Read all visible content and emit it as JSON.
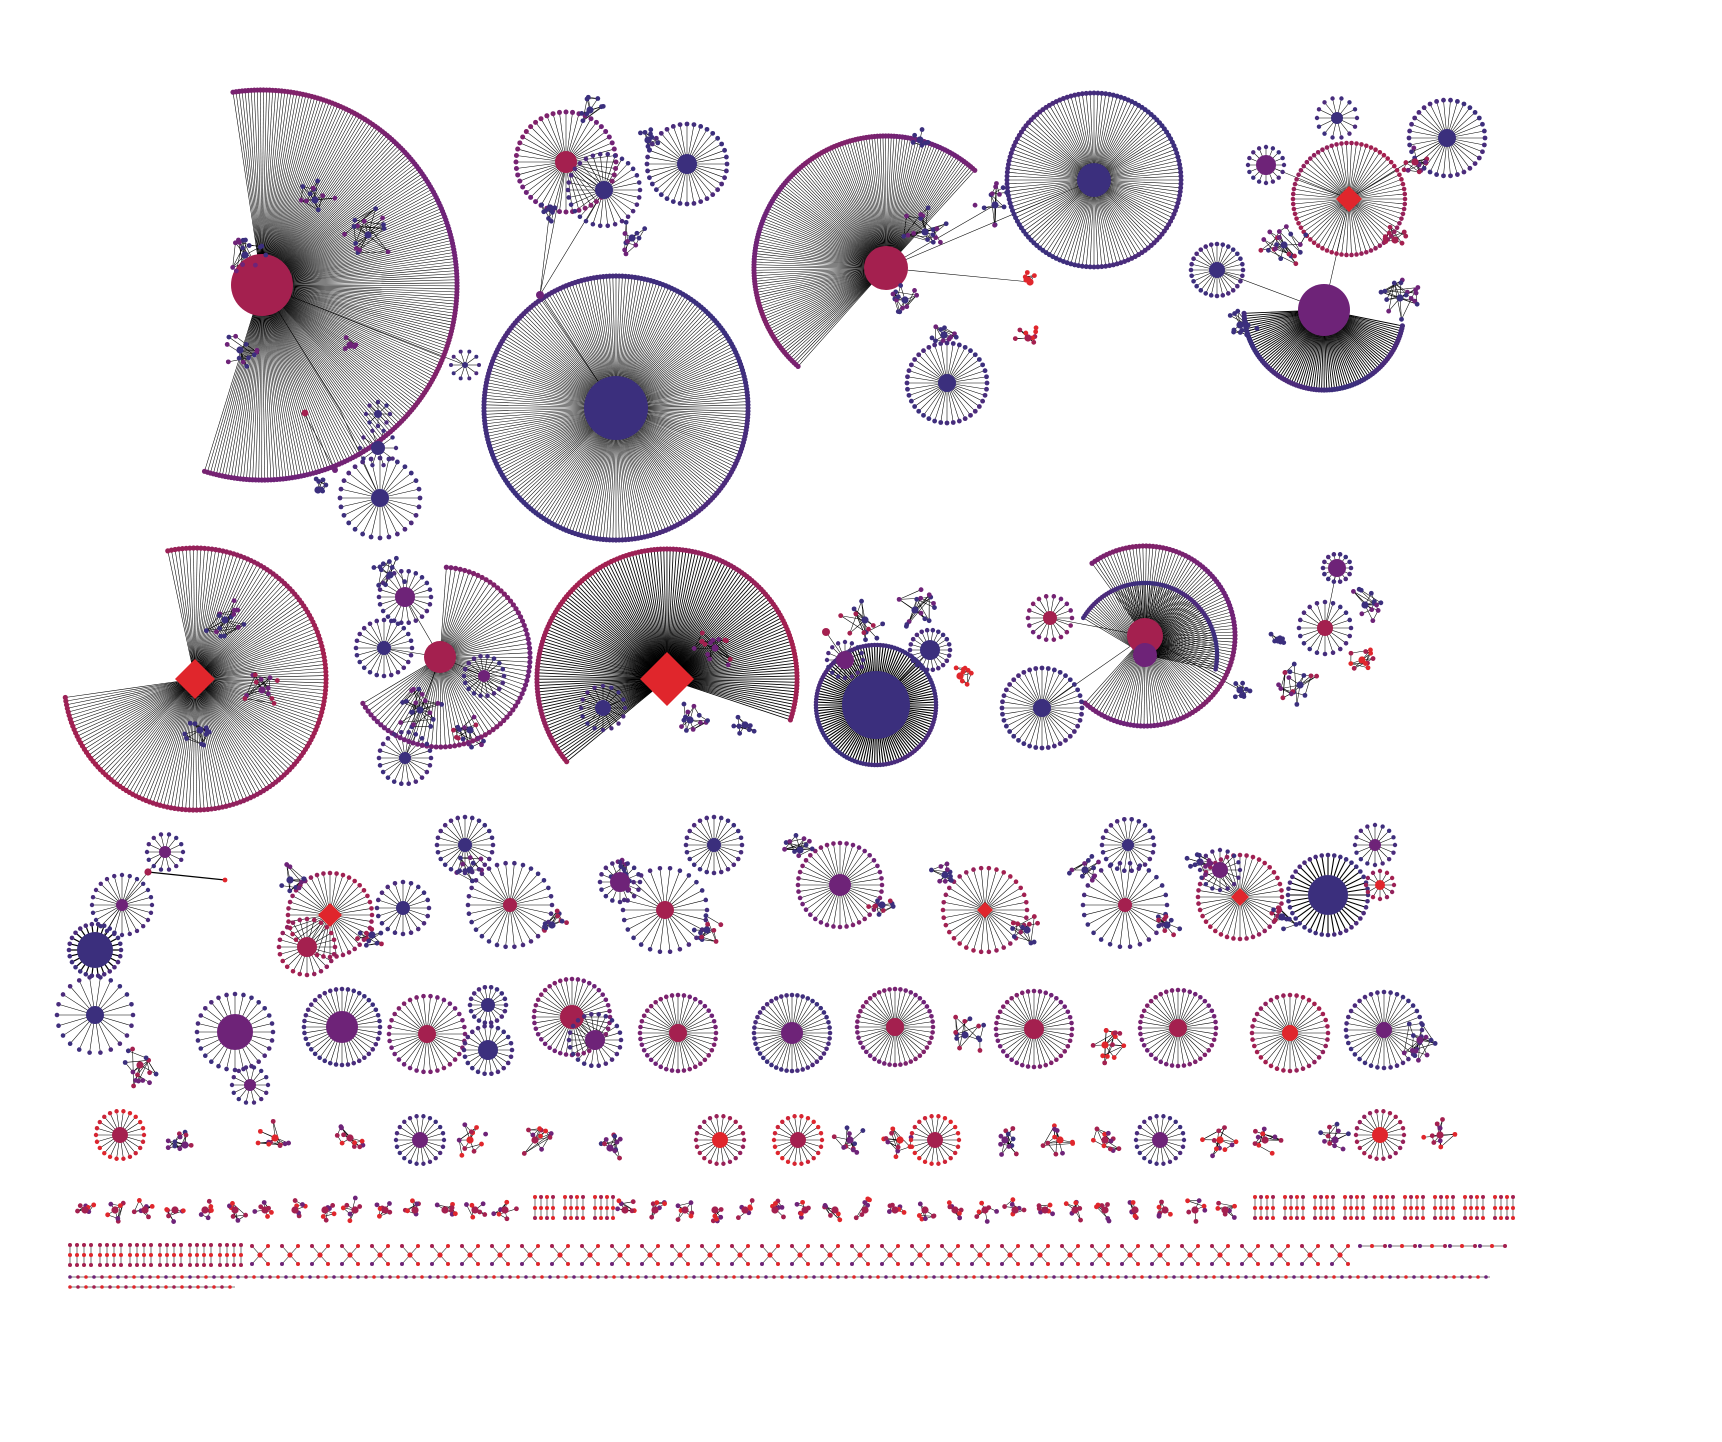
{
  "figure": {
    "background": "#ffffff",
    "edge_color": "#000000",
    "color_scale": {
      "blue": "#3b2f7d",
      "purple": "#6e2378",
      "crimson": "#a4204f",
      "red": "#e0262c"
    },
    "node_shapes": [
      "circle",
      "diamond"
    ],
    "icon_names": [
      "hub-circle-node",
      "hub-diamond-node",
      "leaf-node",
      "edge-line"
    ],
    "major_components": [
      {
        "name": "component-1",
        "hub_color": "crimson",
        "hub_shape": "circle",
        "ring_color": "purple",
        "leaf_count": 230
      },
      {
        "name": "component-2",
        "hub_color": "blue",
        "hub_shape": "circle",
        "ring_color": "blue",
        "leaf_count": 250
      },
      {
        "name": "component-3",
        "hub_color": "crimson",
        "hub_shape": "circle",
        "ring_color": "purple",
        "leaf_count": 150
      },
      {
        "name": "component-4",
        "hub_color": "blue",
        "hub_shape": "circle",
        "ring_color": "blue",
        "leaf_count": 140
      },
      {
        "name": "component-5",
        "hub_color": "red",
        "hub_shape": "diamond",
        "ring_color": "crimson",
        "leaf_count": 70
      },
      {
        "name": "component-6",
        "hub_color": "purple",
        "hub_shape": "circle",
        "ring_color": "blue",
        "leaf_count": 60
      },
      {
        "name": "component-7",
        "hub_color": "red",
        "hub_shape": "diamond",
        "ring_color": "crimson",
        "leaf_count": 160
      },
      {
        "name": "component-8",
        "hub_color": "crimson",
        "hub_shape": "circle",
        "ring_color": "purple",
        "leaf_count": 70
      },
      {
        "name": "component-9",
        "hub_color": "red",
        "hub_shape": "diamond",
        "ring_color": "crimson",
        "leaf_count": 170
      },
      {
        "name": "component-10",
        "hub_color": "blue",
        "hub_shape": "circle",
        "ring_color": "blue",
        "leaf_count": 130
      },
      {
        "name": "component-11",
        "hub_color": "crimson",
        "hub_shape": "circle",
        "ring_color": "purple",
        "leaf_count": 110
      },
      {
        "name": "component-12",
        "hub_color": "crimson",
        "hub_shape": "circle",
        "ring_color": "blue",
        "leaf_count": 40
      }
    ]
  }
}
